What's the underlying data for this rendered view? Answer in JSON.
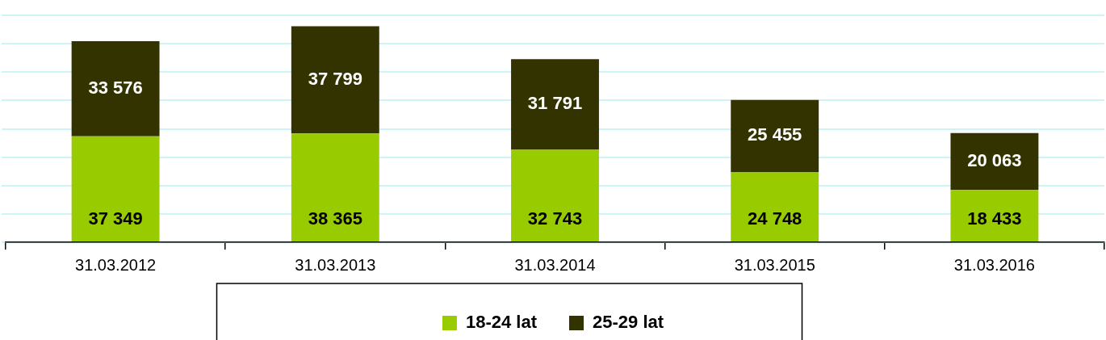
{
  "chart_data": {
    "type": "bar",
    "stacked": true,
    "categories": [
      "31.03.2012",
      "31.03.2013",
      "31.03.2014",
      "31.03.2015",
      "31.03.2016"
    ],
    "series": [
      {
        "name": "18-24 lat",
        "color": "#99cc00",
        "values": [
          37349,
          38365,
          32743,
          24748,
          18433
        ],
        "value_labels": [
          "37 349",
          "38 365",
          "32 743",
          "24 748",
          "18 433"
        ]
      },
      {
        "name": "25-29 lat",
        "color": "#333300",
        "values": [
          33576,
          37799,
          31791,
          25455,
          20063
        ],
        "value_labels": [
          "33 576",
          "37 799",
          "31 791",
          "25 455",
          "20 063"
        ]
      }
    ],
    "ylim": [
      0,
      80000
    ],
    "yticks": [
      {
        "value": 0,
        "label": null
      },
      {
        "value": 10000,
        "label": null
      },
      {
        "value": 20000,
        "label": null
      },
      {
        "value": 30000,
        "label": null
      },
      {
        "value": 40000,
        "label": null
      },
      {
        "value": 50000,
        "label": null
      },
      {
        "value": 60000,
        "label": null
      },
      {
        "value": 70000,
        "label": null
      },
      {
        "value": 80000,
        "label": null
      }
    ],
    "grid": "y",
    "legend": "bottom",
    "tick_labels": "x"
  }
}
